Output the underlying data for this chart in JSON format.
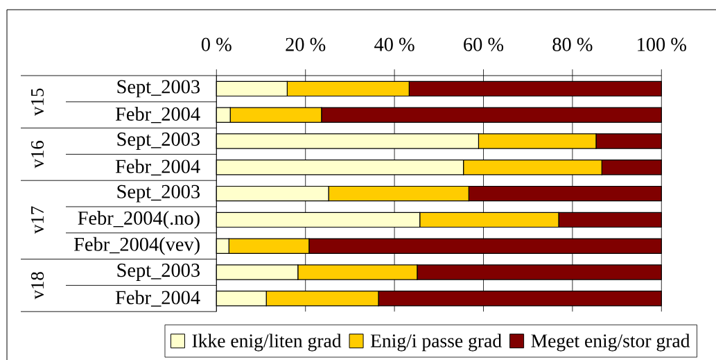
{
  "chart_data": {
    "type": "bar",
    "orientation": "horizontal",
    "stacked": true,
    "categories": [
      "Sept_2003",
      "Febr_2004",
      "Sept_2003",
      "Febr_2004",
      "Sept_2003",
      "Febr_2004(.no)",
      "Febr_2004(vev)",
      "Sept_2003",
      "Febr_2004"
    ],
    "series": [
      {
        "name": "Ikke enig/liten grad",
        "color": "#ffffcc",
        "values": [
          15.9,
          3.1,
          58.9,
          55.5,
          25.2,
          45.7,
          2.8,
          18.3,
          11.2
        ]
      },
      {
        "name": "Enig/i passe grad",
        "color": "#ffcc00",
        "values": [
          27.4,
          20.5,
          26.4,
          31.1,
          31.5,
          31.2,
          18.0,
          26.8,
          25.2
        ]
      },
      {
        "name": "Meget enig/stor grad",
        "color": "#800000",
        "values": [
          56.7,
          76.4,
          14.7,
          13.4,
          43.3,
          23.1,
          79.2,
          54.9,
          63.6
        ]
      }
    ],
    "xlim": [
      0,
      100
    ],
    "xticks": [
      {
        "value": 0,
        "label": "0 %"
      },
      {
        "value": 20,
        "label": "20 %"
      },
      {
        "value": 40,
        "label": "40 %"
      },
      {
        "value": 60,
        "label": "60 %"
      },
      {
        "value": 80,
        "label": "80 %"
      },
      {
        "value": 100,
        "label": "100 %"
      }
    ],
    "grid": "x",
    "legend": "bottom",
    "annotations": [
      "v15",
      "v16",
      "v17",
      "v18"
    ]
  }
}
